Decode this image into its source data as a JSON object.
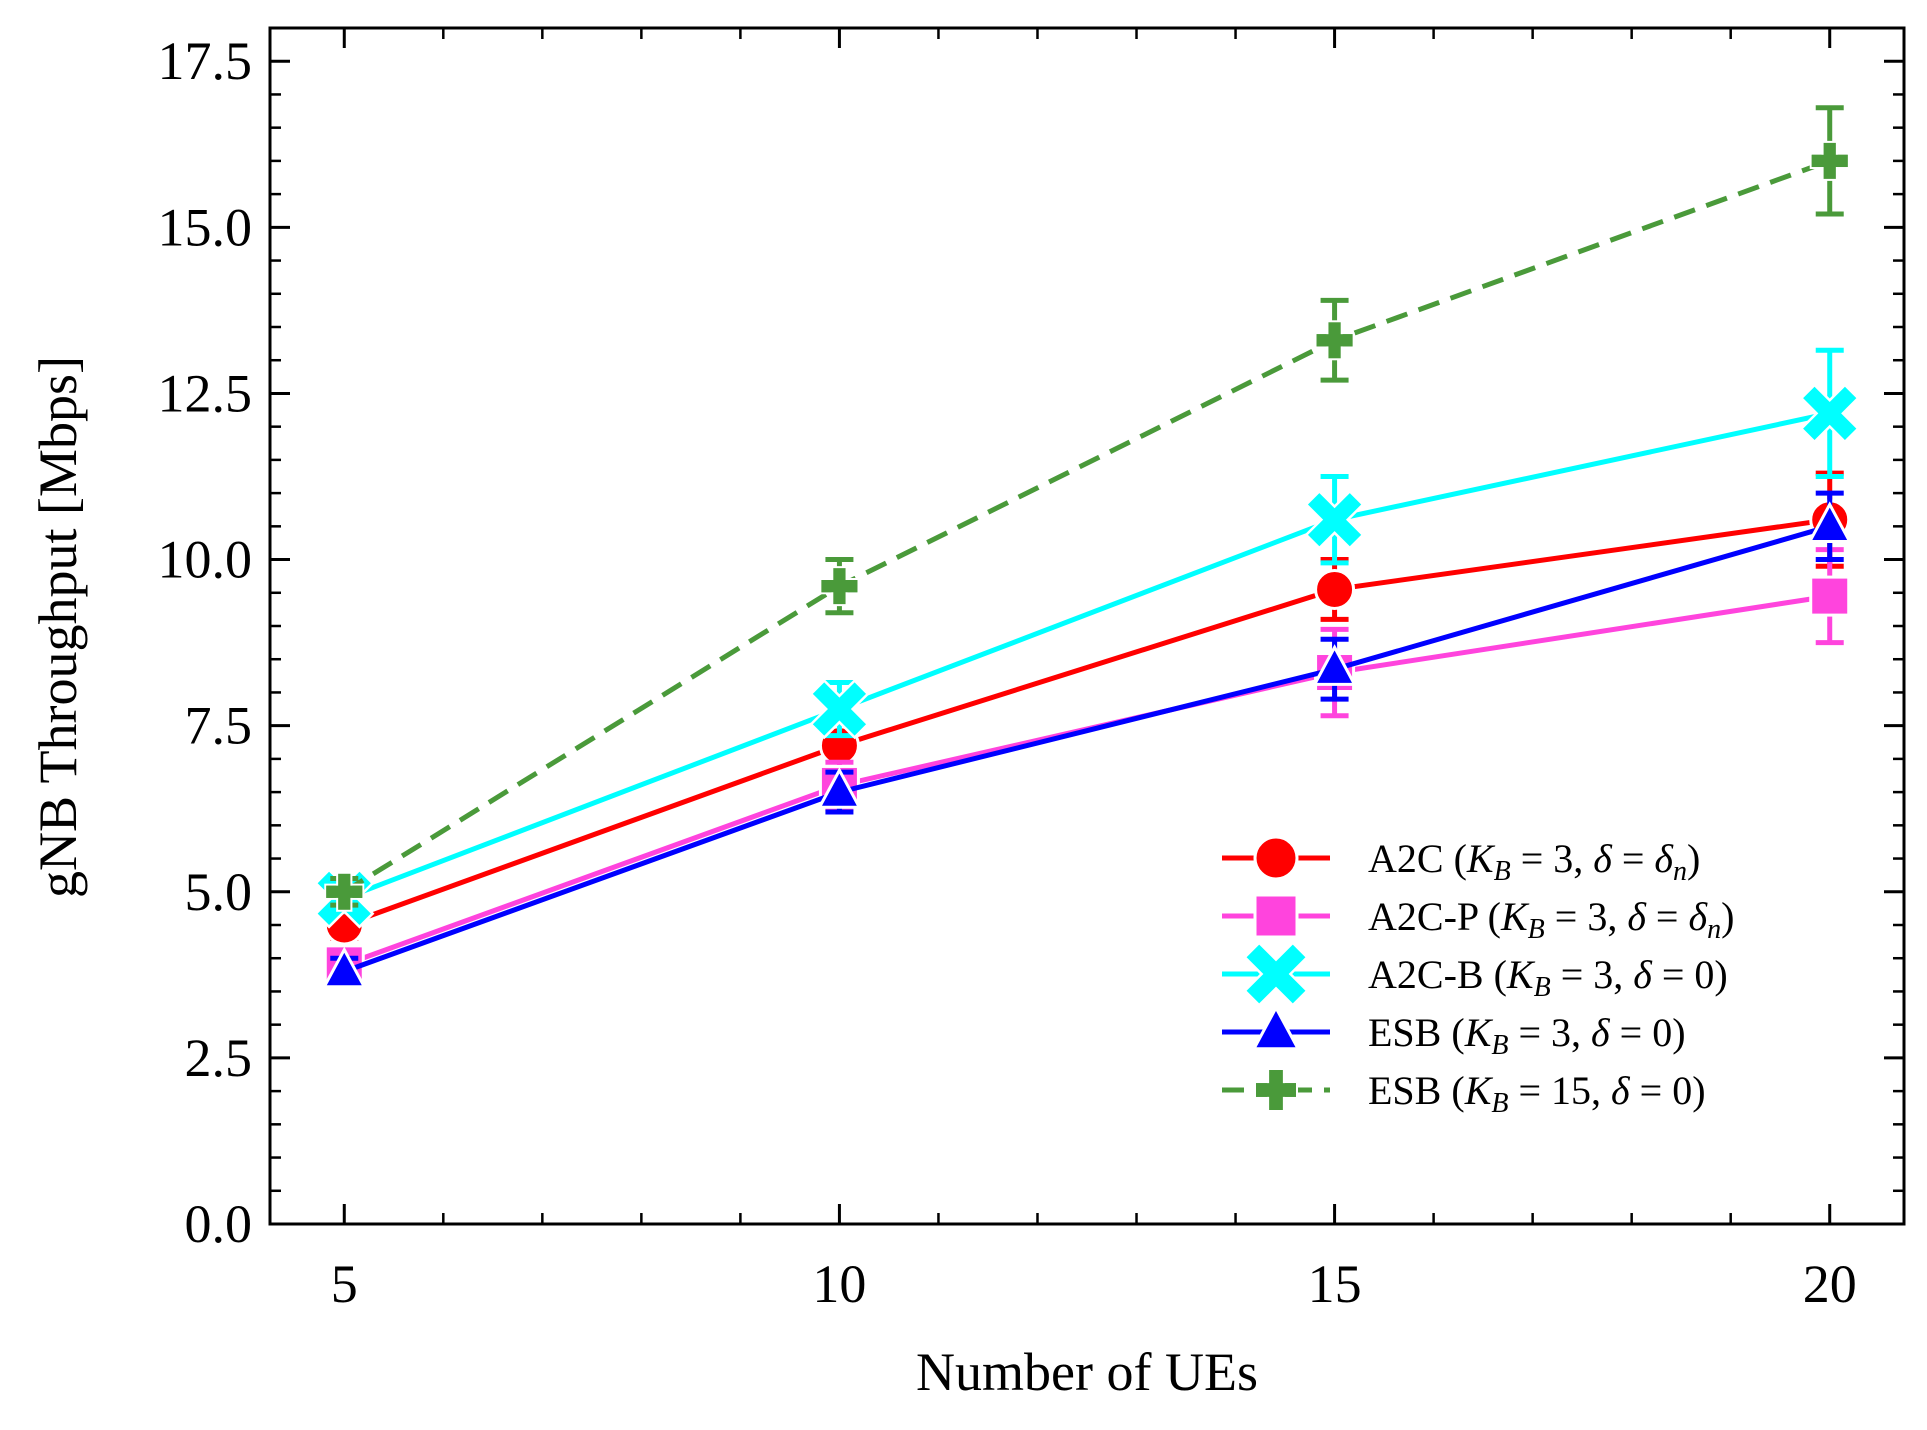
{
  "chart_data": {
    "type": "line",
    "title": "",
    "xlabel": "Number of UEs",
    "ylabel": "gNB Throughput [Mbps]",
    "x": [
      5,
      10,
      15,
      20
    ],
    "xlim": [
      4.25,
      20.75
    ],
    "ylim": [
      0,
      18.0
    ],
    "xticks": [
      5,
      10,
      15,
      20
    ],
    "xtick_labels": [
      "5",
      "10",
      "15",
      "20"
    ],
    "yticks": [
      0,
      2.5,
      5,
      7.5,
      10,
      12.5,
      15,
      17.5
    ],
    "ytick_labels": [
      "0.0",
      "2.5",
      "5.0",
      "7.5",
      "10.0",
      "12.5",
      "15.0",
      "17.5"
    ],
    "grid": false,
    "legend_position": "bottom-right",
    "series": [
      {
        "name": "A2C (K_B = 3, δ = δ_n)",
        "legend": {
          "prefix": "A2C (",
          "kb": "3",
          "delta": "δ",
          "delta_sub": "n"
        },
        "color": "#ff0000",
        "marker": "circle",
        "dashed": false,
        "values": [
          4.5,
          7.2,
          9.55,
          10.6
        ],
        "errors": [
          0.2,
          0.2,
          0.45,
          0.7
        ]
      },
      {
        "name": "A2C-P (K_B = 3, δ = δ_n)",
        "legend": {
          "prefix": "A2C-P (",
          "kb": "3",
          "delta": "δ",
          "delta_sub": "n"
        },
        "color": "#ff44dd",
        "marker": "square",
        "dashed": false,
        "values": [
          3.9,
          6.6,
          8.3,
          9.45
        ],
        "errors": [
          0.2,
          0.35,
          0.65,
          0.7
        ]
      },
      {
        "name": "A2C-B (K_B = 3, δ = 0)",
        "legend": {
          "prefix": "A2C-B (",
          "kb": "3",
          "delta": "0",
          "delta_sub": ""
        },
        "color": "#00ffff",
        "marker": "x",
        "dashed": false,
        "values": [
          4.9,
          7.75,
          10.6,
          12.2
        ],
        "errors": [
          0.2,
          0.4,
          0.65,
          0.95
        ]
      },
      {
        "name": "ESB (K_B = 3, δ = 0)",
        "legend": {
          "prefix": "ESB (",
          "kb": "3",
          "delta": "0",
          "delta_sub": ""
        },
        "color": "#0000ff",
        "marker": "triangle",
        "dashed": false,
        "values": [
          3.8,
          6.5,
          8.35,
          10.5
        ],
        "errors": [
          0.2,
          0.3,
          0.45,
          0.5
        ]
      },
      {
        "name": "ESB (K_B = 15, δ = 0)",
        "legend": {
          "prefix": "ESB (",
          "kb": "15",
          "delta": "0",
          "delta_sub": ""
        },
        "color": "#4a9a3a",
        "marker": "plus",
        "dashed": true,
        "values": [
          5.0,
          9.6,
          13.3,
          16.0
        ],
        "errors": [
          0.2,
          0.4,
          0.6,
          0.8
        ]
      }
    ]
  }
}
